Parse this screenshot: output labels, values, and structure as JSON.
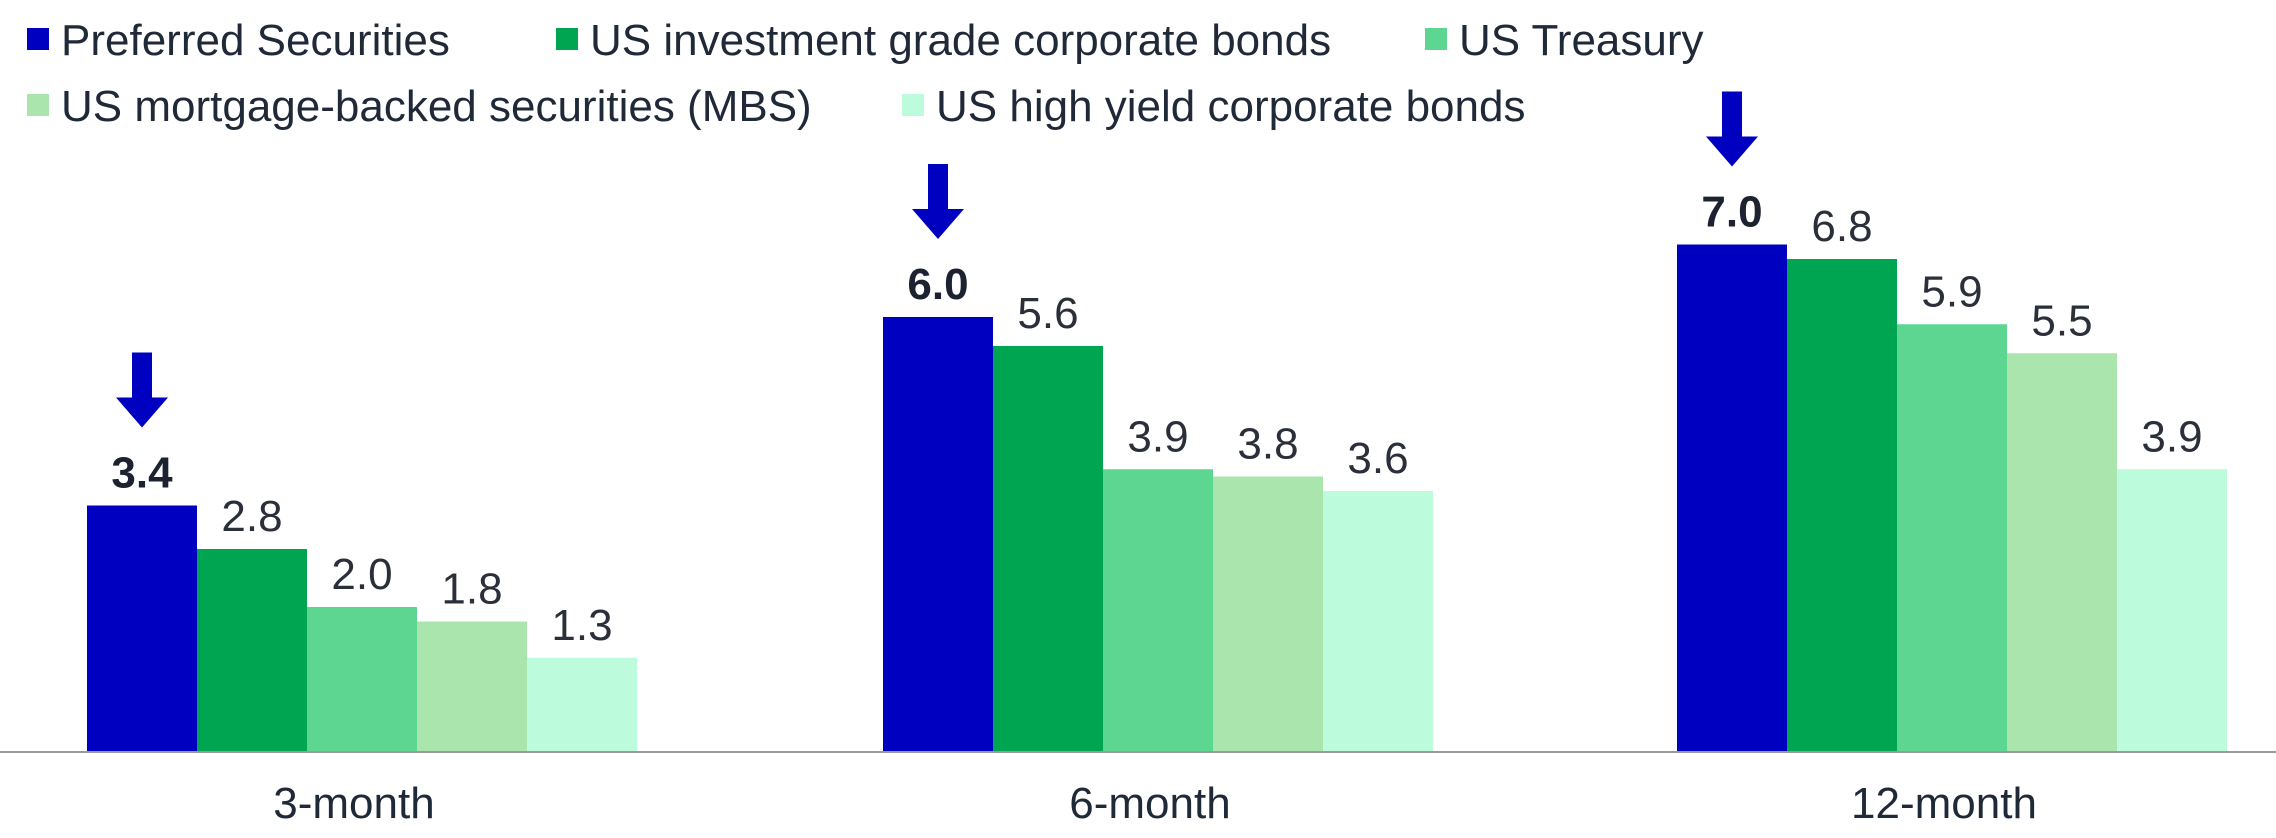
{
  "chart_data": {
    "type": "bar",
    "categories": [
      "3-month",
      "6-month",
      "12-month"
    ],
    "series": [
      {
        "name": "Preferred Securities",
        "color": "#0000c0",
        "values": [
          3.4,
          6.0,
          7.0
        ]
      },
      {
        "name": "US investment grade corporate bonds",
        "color": "#00a551",
        "values": [
          2.8,
          5.6,
          6.8
        ]
      },
      {
        "name": "US Treasury",
        "color": "#5cd690",
        "values": [
          2.0,
          3.9,
          5.9
        ]
      },
      {
        "name": "US mortgage-backed securities (MBS)",
        "color": "#abe5ae",
        "values": [
          1.8,
          3.8,
          5.5
        ]
      },
      {
        "name": "US high yield corporate bonds",
        "color": "#bcfcdd",
        "values": [
          1.3,
          3.6,
          3.9
        ]
      }
    ],
    "value_labels": [
      [
        "3.4",
        "6.0",
        "7.0"
      ],
      [
        "2.8",
        "5.6",
        "6.8"
      ],
      [
        "2.0",
        "3.9",
        "5.9"
      ],
      [
        "1.8",
        "3.8",
        "5.5"
      ],
      [
        "1.3",
        "3.6",
        "3.9"
      ]
    ],
    "highlighted_series": "Preferred Securities",
    "highlight_marker": "down-arrow-icon",
    "highlight_color": "#0000c0",
    "title": "",
    "xlabel": "",
    "ylabel": "",
    "ylim": [
      0,
      7.56
    ],
    "grid": false,
    "legend_position": "top"
  }
}
